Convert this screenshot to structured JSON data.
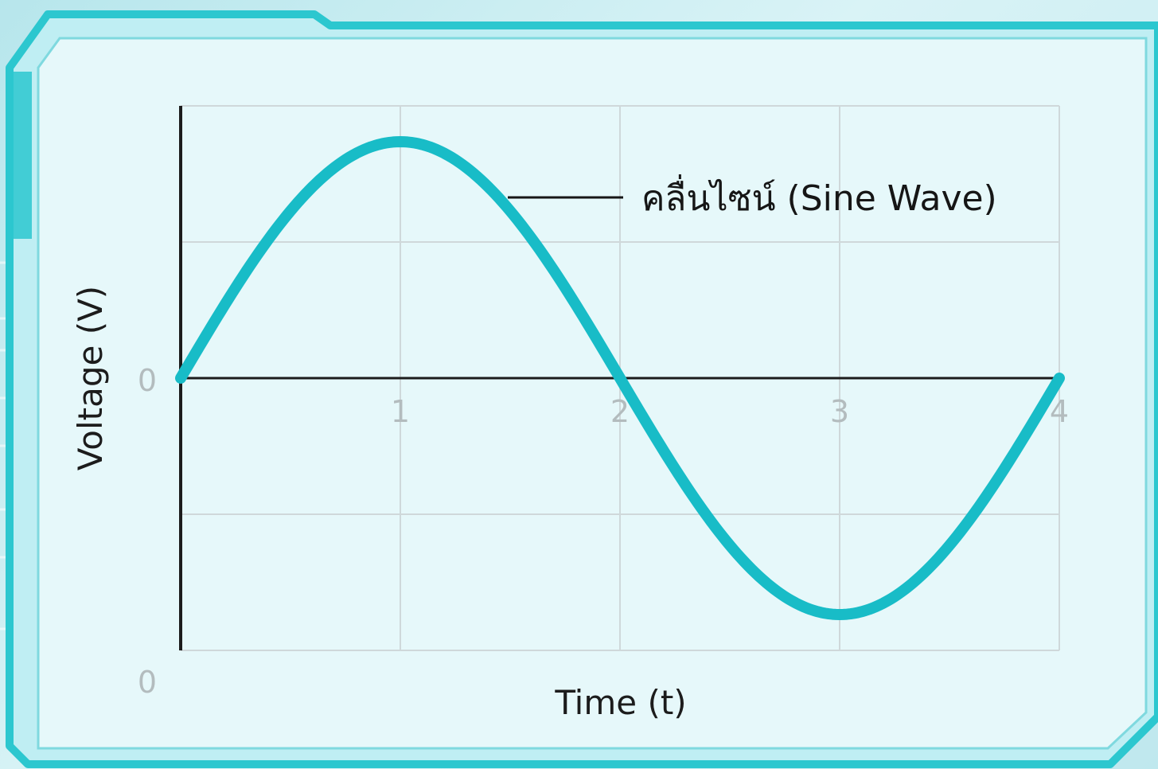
{
  "chart_data": {
    "type": "line",
    "title": "",
    "xlabel": "Time (t)",
    "ylabel": "Voltage (V)",
    "x_ticks": [
      "1",
      "2",
      "3",
      "4"
    ],
    "y_tick_label": "0",
    "origin_label": "0",
    "xlim": [
      0,
      4
    ],
    "ylim": [
      -1.2,
      1.2
    ],
    "grid": true,
    "series": [
      {
        "name": "คลื่นไซน์ (Sine Wave)",
        "function": "sin(pi*t/2)",
        "color": "#18bcc7",
        "x": [
          0,
          0.25,
          0.5,
          0.75,
          1,
          1.25,
          1.5,
          1.75,
          2,
          2.25,
          2.5,
          2.75,
          3,
          3.25,
          3.5,
          3.75,
          4
        ],
        "y": [
          0,
          0.383,
          0.707,
          0.924,
          1,
          0.924,
          0.707,
          0.383,
          0,
          -0.383,
          -0.707,
          -0.924,
          -1,
          -0.924,
          -0.707,
          -0.383,
          0
        ]
      }
    ],
    "annotation": "คลื่นไซน์ (Sine Wave)"
  },
  "colors": {
    "curve": "#18bcc7",
    "frame": "#2cc7cf",
    "panel": "#eaf9fb",
    "grid": "#cfd8da",
    "axis": "#1c1c1c"
  }
}
